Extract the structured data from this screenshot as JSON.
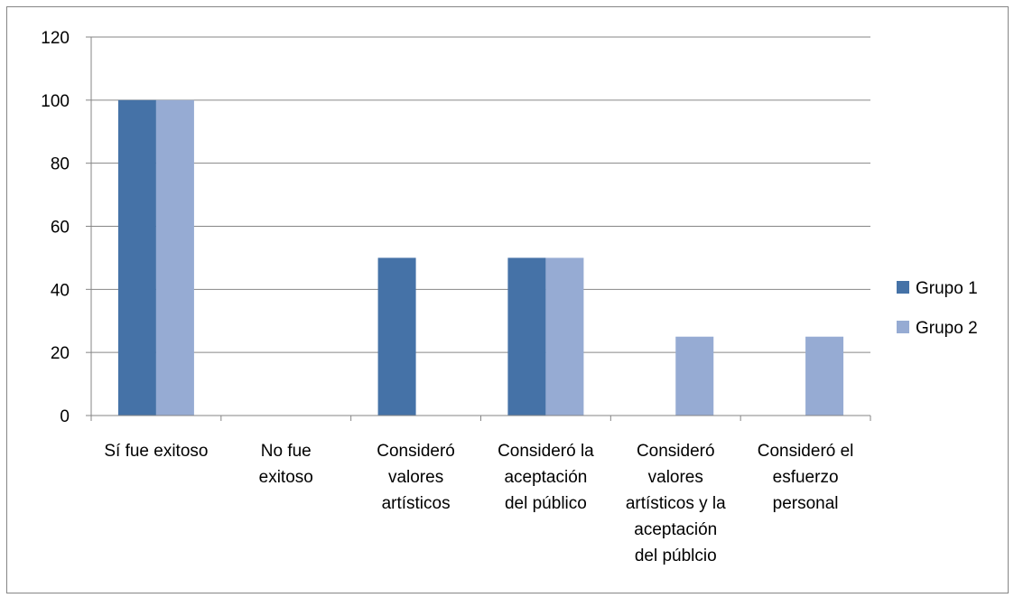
{
  "chart_data": {
    "type": "bar",
    "categories": [
      "Sí fue exitoso",
      "No fue exitoso",
      "Consideró valores artísticos",
      "Consideró la aceptación del público",
      "Consideró valores artísticos y la aceptación del públcio",
      "Consideró el esfuerzo personal"
    ],
    "category_label_lines": [
      [
        "Sí fue exitoso"
      ],
      [
        "No fue",
        "exitoso"
      ],
      [
        "Consideró",
        "valores",
        "artísticos"
      ],
      [
        "Consideró la",
        "aceptación",
        "del público"
      ],
      [
        "Consideró",
        "valores",
        "artísticos y la",
        "aceptación",
        "del públcio"
      ],
      [
        "Consideró el",
        "esfuerzo",
        "personal"
      ]
    ],
    "series": [
      {
        "name": "Grupo 1",
        "color": "#4572A7",
        "values": [
          100,
          0,
          50,
          50,
          0,
          0
        ]
      },
      {
        "name": "Grupo 2",
        "color": "#96ABD3",
        "values": [
          100,
          0,
          0,
          50,
          25,
          25
        ]
      }
    ],
    "yticks": [
      0,
      20,
      40,
      60,
      80,
      100,
      120
    ],
    "ylim": [
      0,
      120
    ],
    "grid": true,
    "legend_position": "right",
    "gridline_color": "#868686",
    "title": "",
    "xlabel": "",
    "ylabel": ""
  }
}
